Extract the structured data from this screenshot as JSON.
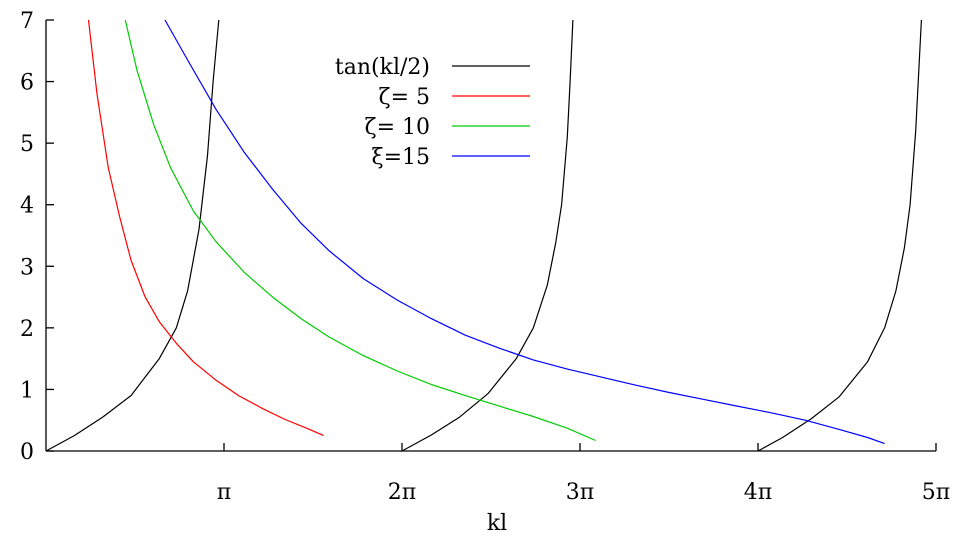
{
  "chart_data": {
    "type": "line",
    "xlabel": "kl",
    "ylabel": "",
    "xlim": [
      0,
      15.708
    ],
    "ylim": [
      0,
      7
    ],
    "grid": false,
    "legend_position": "top-center",
    "x_ticks": [
      {
        "value": 3.1416,
        "label": "π"
      },
      {
        "value": 6.2832,
        "label": "2π"
      },
      {
        "value": 9.4248,
        "label": "3π"
      },
      {
        "value": 12.5664,
        "label": "4π"
      },
      {
        "value": 15.708,
        "label": "5π"
      }
    ],
    "y_ticks": [
      {
        "value": 0,
        "label": "0"
      },
      {
        "value": 1,
        "label": "1"
      },
      {
        "value": 2,
        "label": "2"
      },
      {
        "value": 3,
        "label": "3"
      },
      {
        "value": 4,
        "label": "4"
      },
      {
        "value": 5,
        "label": "5"
      },
      {
        "value": 6,
        "label": "6"
      },
      {
        "value": 7,
        "label": "7"
      }
    ],
    "series": [
      {
        "name": "tan(kl/2)",
        "color": "#000000",
        "x": [
          0,
          0.5,
          1.0,
          1.5,
          2.0,
          2.3,
          2.5,
          2.7,
          2.85,
          2.95,
          3.05,
          3.1,
          3.2,
          3.3,
          6.2832,
          6.8,
          7.3,
          7.8,
          8.3,
          8.6,
          8.85,
          9.0,
          9.1,
          9.2,
          9.25,
          9.3,
          12.5664,
          13.0,
          13.5,
          14.0,
          14.5,
          14.8,
          15.0,
          15.15,
          15.25,
          15.35,
          15.45
        ],
        "y": [
          0,
          0.25,
          0.55,
          0.9,
          1.5,
          2.0,
          2.6,
          3.6,
          4.8,
          6.0,
          7.0,
          7.0,
          7.0,
          7.0,
          0,
          0.26,
          0.55,
          0.93,
          1.5,
          2.0,
          2.7,
          3.4,
          4.0,
          5.1,
          6.0,
          7.0,
          0,
          0.22,
          0.52,
          0.88,
          1.45,
          2.0,
          2.6,
          3.3,
          4.0,
          5.2,
          7.0
        ],
        "segments": [
          [
            0,
            10
          ],
          [
            14,
            25
          ],
          [
            26,
            36
          ]
        ]
      },
      {
        "name": "ζ= 5",
        "color": "#ff0000",
        "x": [
          0.75,
          0.9,
          1.1,
          1.3,
          1.5,
          1.75,
          2.0,
          2.3,
          2.6,
          3.0,
          3.4,
          3.8,
          4.2,
          4.6,
          4.9
        ],
        "y": [
          7.0,
          5.8,
          4.6,
          3.8,
          3.1,
          2.5,
          2.1,
          1.75,
          1.45,
          1.15,
          0.9,
          0.7,
          0.52,
          0.37,
          0.25
        ]
      },
      {
        "name": "ζ= 10",
        "color": "#00cc00",
        "x": [
          1.4,
          1.6,
          1.9,
          2.2,
          2.6,
          3.0,
          3.5,
          4.0,
          4.5,
          5.0,
          5.6,
          6.2,
          6.8,
          7.4,
          8.0,
          8.6,
          9.2,
          9.7
        ],
        "y": [
          7.0,
          6.2,
          5.3,
          4.6,
          3.9,
          3.4,
          2.9,
          2.5,
          2.15,
          1.85,
          1.55,
          1.3,
          1.08,
          0.9,
          0.73,
          0.56,
          0.37,
          0.17
        ]
      },
      {
        "name": "ξ=15",
        "color": "#0000ff",
        "x": [
          2.1,
          2.5,
          3.0,
          3.5,
          4.0,
          4.5,
          5.0,
          5.6,
          6.2,
          6.8,
          7.4,
          8.0,
          8.6,
          9.2,
          9.8,
          10.4,
          11.0,
          11.6,
          12.2,
          12.8,
          13.4,
          14.0,
          14.5,
          14.8
        ],
        "y": [
          7.0,
          6.35,
          5.55,
          4.85,
          4.25,
          3.7,
          3.25,
          2.8,
          2.45,
          2.15,
          1.88,
          1.67,
          1.48,
          1.33,
          1.2,
          1.07,
          0.95,
          0.84,
          0.73,
          0.62,
          0.5,
          0.35,
          0.22,
          0.12
        ]
      }
    ]
  }
}
